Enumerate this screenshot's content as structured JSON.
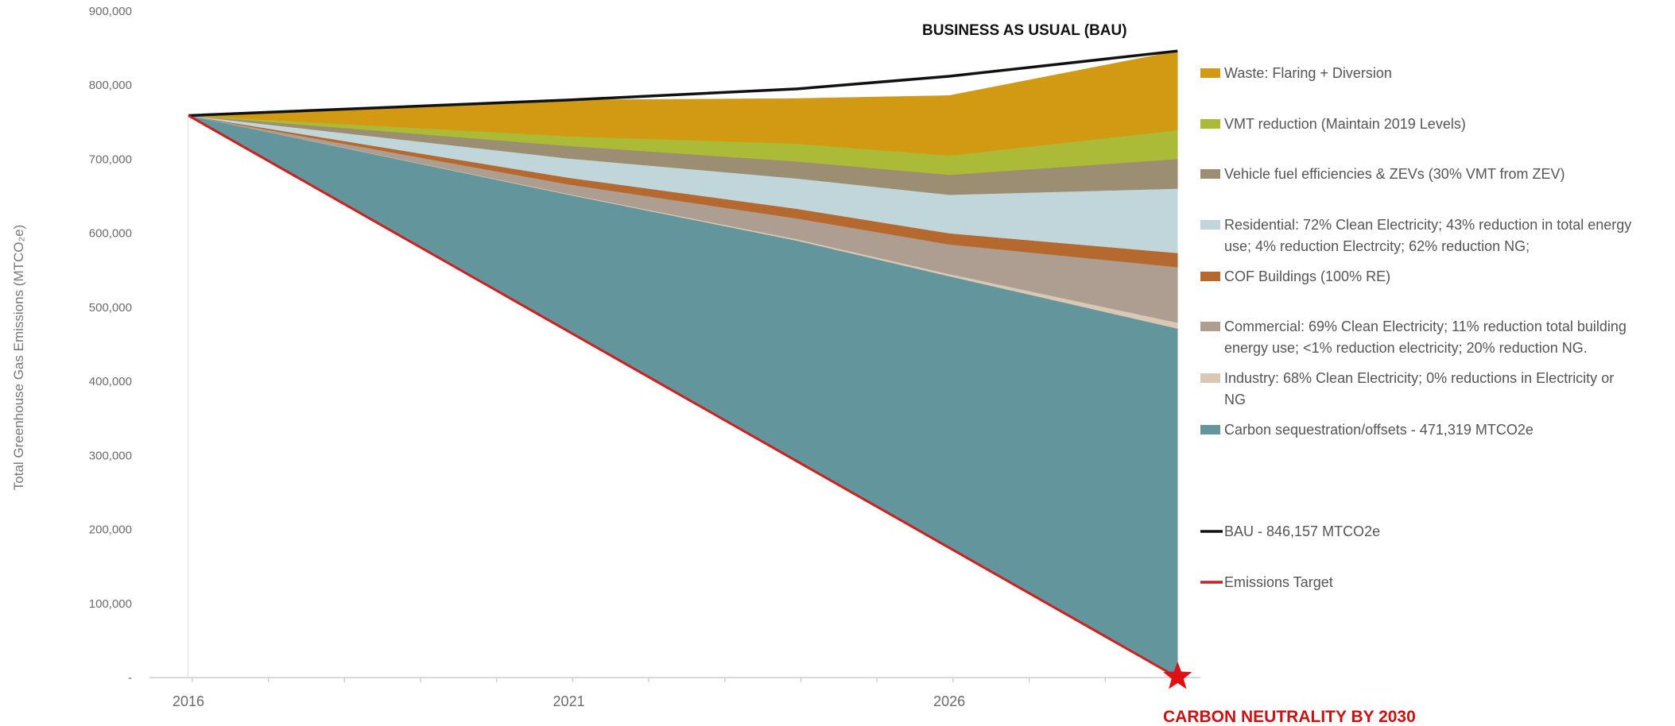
{
  "chart_data": {
    "type": "area",
    "ylabel": "Total Greenhouse Gas Emissions (MTCO₂e)",
    "xlabel": "",
    "xlim": [
      2016,
      2029.3
    ],
    "ylim": [
      0,
      900000
    ],
    "y_ticks": [
      0,
      100000,
      200000,
      300000,
      400000,
      500000,
      600000,
      700000,
      800000,
      900000
    ],
    "y_tick_labels": [
      "-",
      "100,000",
      "200,000",
      "300,000",
      "400,000",
      "500,000",
      "600,000",
      "700,000",
      "800,000",
      "900,000"
    ],
    "x_ticks": [
      2016,
      2021,
      2026
    ],
    "x_tick_labels": [
      "2016",
      "2021",
      "2026"
    ],
    "x": [
      2016,
      2021,
      2024,
      2026,
      2029
    ],
    "series": [
      {
        "name": "Carbon sequestration/offsets - 471,319 MTCO2e",
        "color": "#63959c",
        "values": [
          759000,
          652000,
          590000,
          542000,
          471319
        ]
      },
      {
        "name": "Industry: 68% Clean Electricity; 0% reductions in Electricity or NG",
        "color": "#d8c8b4",
        "values": [
          0,
          1000,
          2000,
          3000,
          8000
        ]
      },
      {
        "name": "Commercial: 69% Clean Electricity; 11% reduction total building energy use; <1% reduction electricity; 20% reduction NG.",
        "color": "#ad9e91",
        "values": [
          0,
          13000,
          28000,
          40000,
          75000
        ]
      },
      {
        "name": "COF Buildings (100% RE)",
        "color": "#b5692e",
        "values": [
          0,
          9000,
          13000,
          15000,
          19000
        ]
      },
      {
        "name": "Residential: 72% Clean Electricity; 43% reduction in total energy use; 4% reduction Electrcity; 62% reduction NG;",
        "color": "#c1d6da",
        "values": [
          0,
          26000,
          41000,
          52000,
          87000
        ]
      },
      {
        "name": "Vehicle fuel efficiencies & ZEVs (30% VMT from ZEV)",
        "color": "#9b8e73",
        "values": [
          0,
          17000,
          23000,
          27000,
          40000
        ]
      },
      {
        "name": "VMT reduction (Maintain 2019 Levels)",
        "color": "#acbb37",
        "values": [
          0,
          13000,
          24000,
          26000,
          39000
        ]
      },
      {
        "name": "Waste: Flaring + Diversion",
        "color": "#d19a12",
        "values": [
          0,
          49000,
          61000,
          81000,
          106838
        ]
      }
    ],
    "lines": [
      {
        "name": "BAU - 846,157 MTCO2e",
        "color": "#111111",
        "x": [
          2016,
          2021,
          2024,
          2026,
          2029
        ],
        "values": [
          759000,
          780000,
          795000,
          812000,
          846157
        ]
      },
      {
        "name": "Emissions Target",
        "color": "#cc1f1f",
        "x": [
          2016,
          2029
        ],
        "values": [
          759000,
          0
        ]
      }
    ],
    "annotations": {
      "bau_title": "BUSINESS AS USUAL (BAU)",
      "neutrality_title": "CARBON NEUTRALITY BY 2030"
    },
    "legend_placement": "right",
    "grid": false,
    "legend": [
      {
        "lines": [
          "Waste: Flaring + Diversion"
        ],
        "color": "#d19a12",
        "kind": "box"
      },
      {
        "lines": [
          "VMT reduction (Maintain 2019 Levels)"
        ],
        "color": "#acbb37",
        "kind": "box"
      },
      {
        "lines": [
          "Vehicle fuel efficiencies & ZEVs (30% VMT from ZEV)"
        ],
        "color": "#9b8e73",
        "kind": "box"
      },
      {
        "lines": [
          "Residential: 72% Clean Electricity; 43% reduction in total energy",
          "use; 4% reduction Electrcity; 62% reduction NG;"
        ],
        "color": "#c1d6da",
        "kind": "box"
      },
      {
        "lines": [
          "COF Buildings (100% RE)"
        ],
        "color": "#b5692e",
        "kind": "box"
      },
      {
        "lines": [
          "Commercial: 69% Clean Electricity; 11% reduction total building",
          "energy use; <1% reduction electricity; 20% reduction NG."
        ],
        "color": "#ad9e91",
        "kind": "box"
      },
      {
        "lines": [
          "Industry: 68% Clean Electricity; 0% reductions in Electricity or",
          "NG"
        ],
        "color": "#d8c8b4",
        "kind": "box"
      },
      {
        "lines": [
          "Carbon sequestration/offsets - 471,319 MTCO2e"
        ],
        "color": "#63959c",
        "kind": "box"
      },
      {
        "lines": [
          "BAU - 846,157 MTCO2e"
        ],
        "color": "#111111",
        "kind": "line"
      },
      {
        "lines": [
          "Emissions Target"
        ],
        "color": "#cc1f1f",
        "kind": "line"
      }
    ]
  }
}
